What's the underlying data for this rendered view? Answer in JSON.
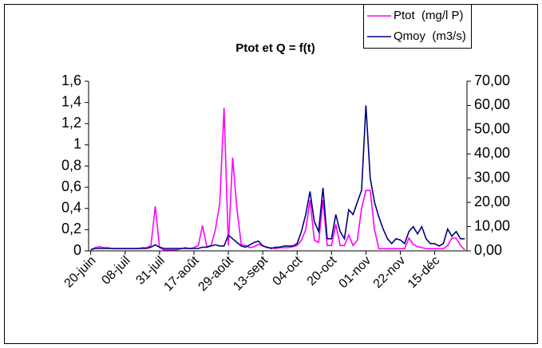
{
  "chart_data": {
    "type": "line",
    "title": "Ptot et Q = f(t)",
    "categories": [
      "20-juin",
      null,
      null,
      null,
      null,
      null,
      null,
      null,
      "08-juil",
      null,
      null,
      null,
      null,
      null,
      null,
      null,
      "31-juil",
      null,
      null,
      null,
      null,
      null,
      null,
      null,
      "17-août",
      null,
      null,
      null,
      null,
      null,
      null,
      null,
      "29-août",
      null,
      null,
      null,
      null,
      null,
      null,
      null,
      "13-sept",
      null,
      null,
      null,
      null,
      null,
      null,
      null,
      "04-oct",
      null,
      null,
      null,
      null,
      null,
      null,
      null,
      "20-oct",
      null,
      null,
      null,
      null,
      null,
      null,
      null,
      "01-nov",
      null,
      null,
      null,
      null,
      null,
      null,
      null,
      "22-nov",
      null,
      null,
      null,
      null,
      null,
      null,
      null,
      "15-déc",
      null,
      null,
      null,
      null,
      null,
      null,
      null
    ],
    "series": [
      {
        "name": "Ptot  (mg/l P)",
        "color": "#ff00ff",
        "values": [
          0.01,
          0.03,
          0.04,
          0.03,
          0.03,
          0.02,
          0.02,
          0.02,
          0.02,
          0.02,
          0.02,
          0.02,
          0.03,
          0.03,
          0.05,
          0.42,
          0.03,
          0.01,
          0.01,
          0.01,
          0.01,
          0.02,
          0.03,
          0.02,
          0.03,
          0.05,
          0.24,
          0.04,
          0.05,
          0.2,
          0.45,
          1.35,
          0.05,
          0.88,
          0.4,
          0.06,
          0.05,
          0.03,
          0.04,
          0.06,
          0.05,
          0.03,
          0.03,
          0.02,
          0.03,
          0.03,
          0.03,
          0.04,
          0.05,
          0.1,
          0.2,
          0.48,
          0.1,
          0.08,
          0.48,
          0.05,
          0.05,
          0.25,
          0.05,
          0.05,
          0.15,
          0.05,
          0.1,
          0.4,
          0.57,
          0.57,
          0.2,
          0.02,
          0.02,
          0.02,
          0.02,
          0.02,
          0.02,
          0.02,
          0.12,
          0.06,
          0.04,
          0.03,
          0.02,
          0.02,
          0.02,
          0.02,
          0.02,
          0.05,
          0.12,
          0.12,
          0.05,
          0.01
        ]
      },
      {
        "name": "Qmoy  (m3/s)",
        "color": "#000080",
        "axis": "y2",
        "values": [
          0.5,
          1,
          1,
          1,
          1,
          1,
          1,
          1,
          1,
          1,
          1,
          1,
          1,
          1,
          1.5,
          2.5,
          1.5,
          1,
          1,
          1,
          1,
          1,
          1,
          1,
          1,
          1,
          1.5,
          1.5,
          2,
          2.5,
          2,
          2,
          6.5,
          5,
          3.5,
          2,
          1.5,
          2.5,
          3.5,
          4,
          2,
          1.5,
          1,
          1.5,
          1.5,
          2,
          2,
          2,
          3,
          8,
          15,
          24.5,
          12,
          8,
          26,
          5,
          5,
          15,
          8,
          5,
          17,
          15,
          20,
          25,
          60,
          30,
          20,
          14,
          9,
          5,
          3,
          5,
          4.5,
          3,
          8,
          10,
          7,
          10,
          5,
          3,
          3,
          2,
          3,
          9,
          6,
          8,
          5,
          5
        ]
      }
    ],
    "ylim": [
      0,
      1.6
    ],
    "yticks": [
      0,
      {
        "value": 0.2,
        "label": "0,2"
      },
      {
        "value": 0.4,
        "label": "0,4"
      },
      {
        "value": 0.6,
        "label": "0,6"
      },
      {
        "value": 0.8,
        "label": "0,8"
      },
      1,
      {
        "value": 1.2,
        "label": "1,2"
      },
      {
        "value": 1.4,
        "label": "1,4"
      },
      {
        "value": 1.6,
        "label": "1,6"
      }
    ],
    "y2lim": [
      0,
      70
    ],
    "y2ticks": [
      {
        "value": 0,
        "label": "0,00"
      },
      {
        "value": 10,
        "label": "10,00"
      },
      {
        "value": 20,
        "label": "20,00"
      },
      {
        "value": 30,
        "label": "30,00"
      },
      {
        "value": 40,
        "label": "40,00"
      },
      {
        "value": 50,
        "label": "50,00"
      },
      {
        "value": 60,
        "label": "60,00"
      },
      {
        "value": 70,
        "label": "70,00"
      }
    ],
    "legend": "top-right",
    "grid": false
  }
}
